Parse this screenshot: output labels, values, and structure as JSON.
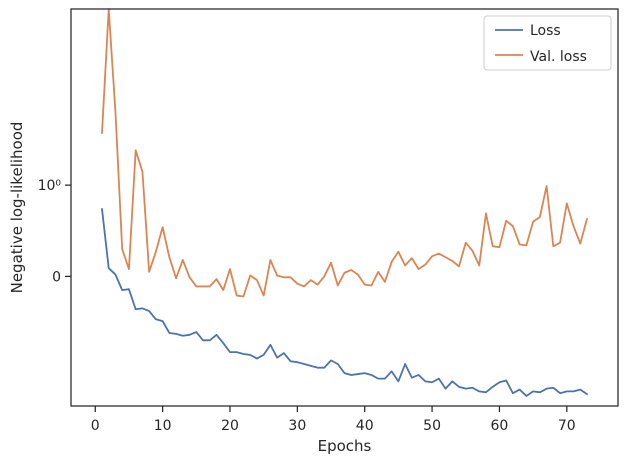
{
  "chart_data": {
    "type": "line",
    "title": "",
    "xlabel": "Epochs",
    "ylabel": "Negative log-likelihood",
    "xlim": [
      -3.6,
      77.6
    ],
    "ylim": [
      -1.42,
      2.93
    ],
    "xticks": [
      0,
      10,
      20,
      30,
      40,
      50,
      60,
      70
    ],
    "xtick_labels": [
      "0",
      "10",
      "20",
      "30",
      "40",
      "50",
      "60",
      "70"
    ],
    "yticks": [
      0,
      1
    ],
    "ytick_labels": [
      "0",
      "10⁰"
    ],
    "grid": false,
    "legend_position": "top-right",
    "series": [
      {
        "name": "Loss",
        "color": "#4c72b0",
        "x": [
          1,
          2,
          3,
          4,
          5,
          6,
          7,
          8,
          9,
          10,
          11,
          12,
          13,
          14,
          15,
          16,
          17,
          18,
          19,
          20,
          21,
          22,
          23,
          24,
          25,
          26,
          27,
          28,
          29,
          30,
          31,
          32,
          33,
          34,
          35,
          36,
          37,
          38,
          39,
          40,
          41,
          42,
          43,
          44,
          45,
          46,
          47,
          48,
          49,
          50,
          51,
          52,
          53,
          54,
          55,
          56,
          57,
          58,
          59,
          60,
          61,
          62,
          63,
          64,
          65,
          66,
          67,
          68,
          69,
          70,
          71,
          72,
          73
        ],
        "values": [
          0.74,
          0.09,
          0.02,
          -0.15,
          -0.14,
          -0.36,
          -0.35,
          -0.38,
          -0.47,
          -0.49,
          -0.62,
          -0.63,
          -0.65,
          -0.64,
          -0.61,
          -0.7,
          -0.7,
          -0.64,
          -0.73,
          -0.83,
          -0.83,
          -0.85,
          -0.86,
          -0.9,
          -0.86,
          -0.75,
          -0.89,
          -0.84,
          -0.93,
          -0.94,
          -0.96,
          -0.98,
          -1.0,
          -1.0,
          -0.92,
          -0.96,
          -1.06,
          -1.08,
          -1.07,
          -1.06,
          -1.08,
          -1.12,
          -1.12,
          -1.04,
          -1.15,
          -0.96,
          -1.11,
          -1.08,
          -1.15,
          -1.16,
          -1.12,
          -1.23,
          -1.15,
          -1.21,
          -1.23,
          -1.22,
          -1.26,
          -1.27,
          -1.21,
          -1.16,
          -1.14,
          -1.28,
          -1.24,
          -1.31,
          -1.26,
          -1.27,
          -1.23,
          -1.22,
          -1.28,
          -1.26,
          -1.26,
          -1.24,
          -1.29
        ]
      },
      {
        "name": "Val. loss",
        "color": "#dd8452",
        "x": [
          1,
          2,
          3,
          4,
          5,
          6,
          7,
          8,
          9,
          10,
          11,
          12,
          13,
          14,
          15,
          16,
          17,
          18,
          19,
          20,
          21,
          22,
          23,
          24,
          25,
          26,
          27,
          28,
          29,
          30,
          31,
          32,
          33,
          34,
          35,
          36,
          37,
          38,
          39,
          40,
          41,
          42,
          43,
          44,
          45,
          46,
          47,
          48,
          49,
          50,
          51,
          52,
          53,
          54,
          55,
          56,
          57,
          58,
          59,
          60,
          61,
          62,
          63,
          64,
          65,
          66,
          67,
          68,
          69,
          70,
          71,
          72,
          73
        ],
        "values": [
          1.57,
          2.93,
          1.8,
          0.3,
          0.08,
          1.38,
          1.15,
          0.05,
          0.27,
          0.54,
          0.21,
          -0.02,
          0.18,
          -0.01,
          -0.11,
          -0.11,
          -0.11,
          -0.03,
          -0.15,
          0.08,
          -0.21,
          -0.22,
          0.01,
          -0.04,
          -0.21,
          0.18,
          0.01,
          -0.01,
          -0.01,
          -0.08,
          -0.11,
          -0.04,
          -0.09,
          0.0,
          0.15,
          -0.1,
          0.04,
          0.07,
          0.02,
          -0.09,
          -0.1,
          0.05,
          -0.06,
          0.16,
          0.27,
          0.12,
          0.2,
          0.08,
          0.13,
          0.22,
          0.25,
          0.21,
          0.17,
          0.11,
          0.37,
          0.28,
          0.12,
          0.69,
          0.33,
          0.32,
          0.61,
          0.55,
          0.35,
          0.34,
          0.6,
          0.65,
          0.99,
          0.33,
          0.37,
          0.8,
          0.55,
          0.36,
          0.63
        ]
      }
    ]
  }
}
